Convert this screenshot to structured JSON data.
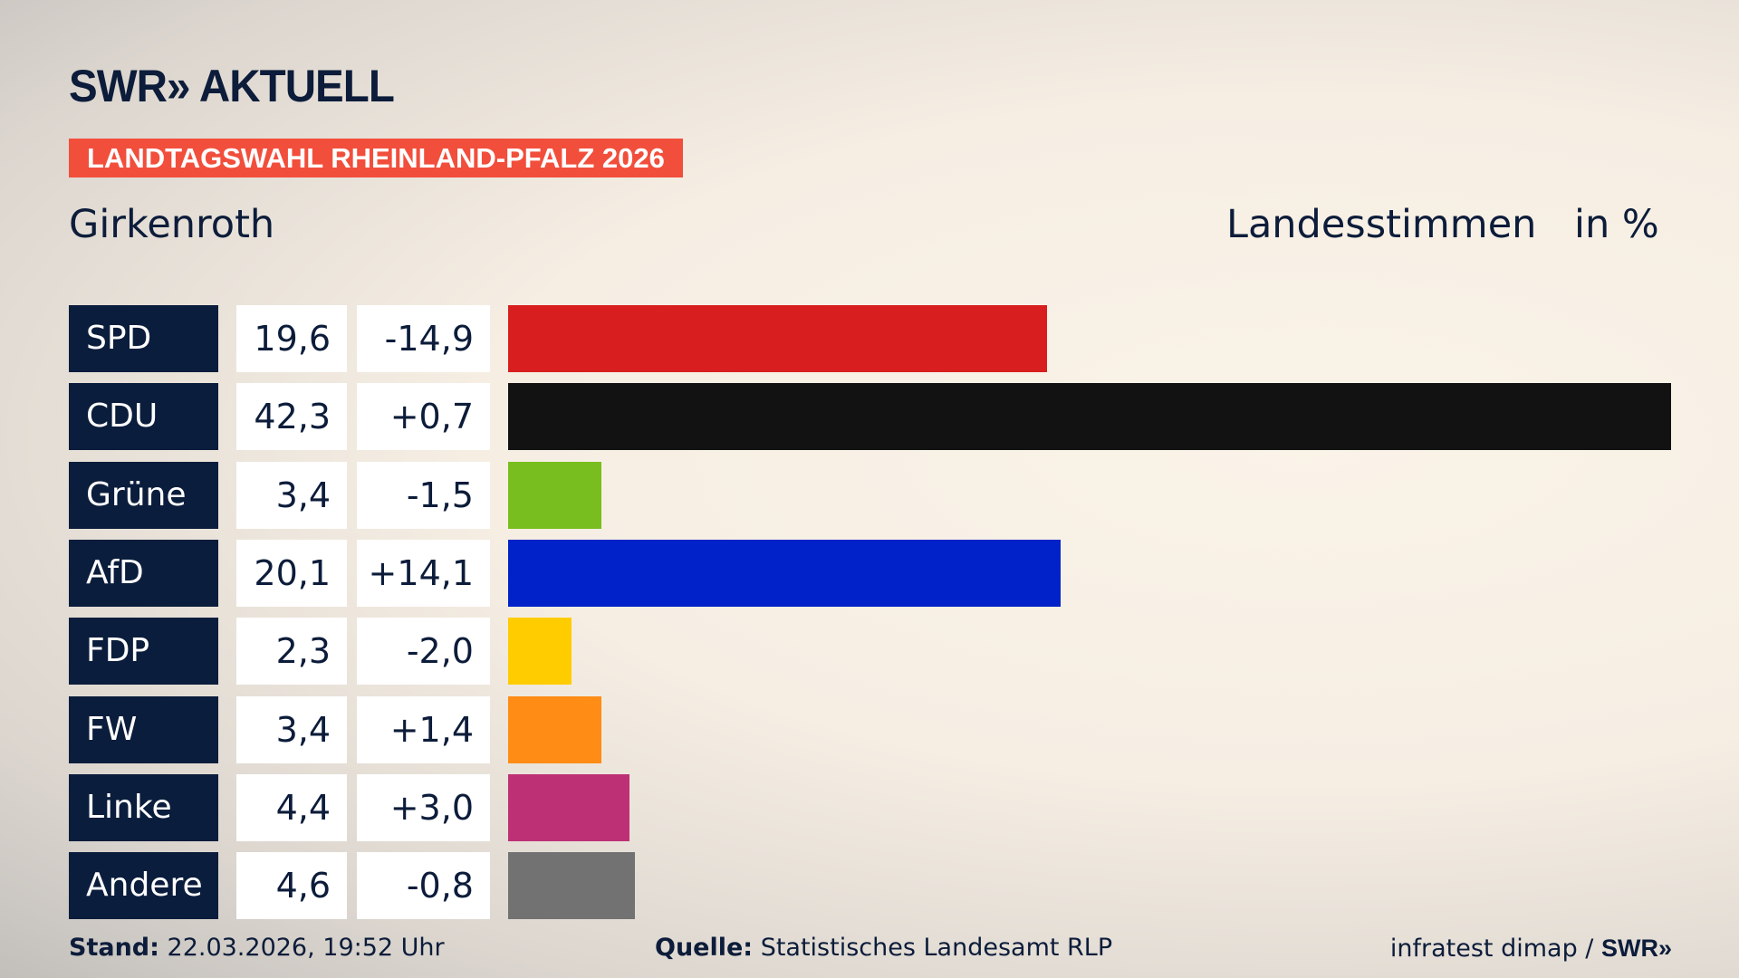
{
  "header": {
    "logo": "SWR» AKTUELL",
    "banner": "LANDTAGSWAHL RHEINLAND-PFALZ 2026",
    "place": "Girkenroth",
    "measure": "Landesstimmen",
    "unit": "in %"
  },
  "chart_data": {
    "type": "bar",
    "orientation": "horizontal",
    "xlim": [
      0,
      42.3
    ],
    "categories": [
      "SPD",
      "CDU",
      "Grüne",
      "AfD",
      "FDP",
      "FW",
      "Linke",
      "Andere"
    ],
    "values": [
      19.6,
      42.3,
      3.4,
      20.1,
      2.3,
      3.4,
      4.4,
      4.6
    ],
    "value_labels": [
      "19,6",
      "42,3",
      "3,4",
      "20,1",
      "2,3",
      "3,4",
      "4,4",
      "4,6"
    ],
    "diff_labels": [
      "-14,9",
      "+0,7",
      "-1,5",
      "+14,1",
      "-2,0",
      "+1,4",
      "+3,0",
      "-0,8"
    ],
    "diffs": [
      -14.9,
      0.7,
      -1.5,
      14.1,
      -2.0,
      1.4,
      3.0,
      -0.8
    ],
    "colors": [
      "#d81e1e",
      "#121212",
      "#78be1e",
      "#0022c8",
      "#ffcc00",
      "#ff8c14",
      "#be3075",
      "#727272"
    ]
  },
  "footer": {
    "stand_label": "Stand:",
    "stand_value": "22.03.2026, 19:52 Uhr",
    "source_label": "Quelle:",
    "source_value": "Statistisches Landesamt RLP",
    "credit": "infratest dimap / ",
    "credit_logo": "SWR»"
  }
}
